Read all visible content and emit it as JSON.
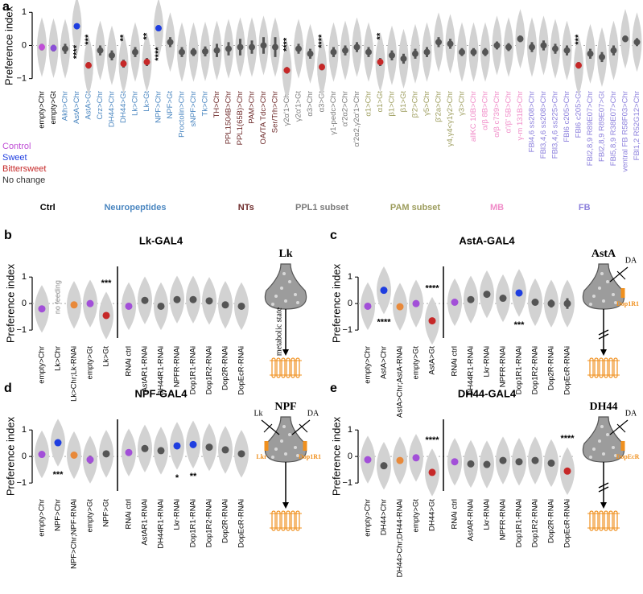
{
  "chart_data": [
    {
      "type": "violin",
      "panel": "a",
      "ylabel": "Preference index",
      "ylim": [
        -1.3,
        1.25
      ],
      "yticks": [
        {
          "value": -1,
          "label": "−1"
        },
        0,
        1
      ],
      "legend": [
        {
          "name": "Control",
          "color": "#c04fd6"
        },
        {
          "name": "Sweet",
          "color": "#1f3ee0"
        },
        {
          "name": "Bittersweet",
          "color": "#c62828"
        },
        {
          "name": "No change",
          "color": "#333333"
        }
      ],
      "groups": [
        {
          "name": "Ctrl",
          "color": "#000000",
          "categories": [
            "empty>Chr",
            "empty>Gt"
          ],
          "values": [
            -0.05,
            -0.08
          ],
          "errors": [
            0.1,
            0.1
          ],
          "colors": [
            "#c04fd6",
            "#8a4fd6"
          ],
          "sig": [
            null,
            null
          ]
        },
        {
          "name": "Neuropeptides",
          "color": "#4a86c0",
          "categories": [
            "Akh>Chr",
            "AstA>Chr",
            "AstA>Gt",
            "Crz>Chr",
            "DH44>Chr",
            "DH44>Gt",
            "Lk>Chr",
            "Lk>Gt",
            "NPF>Chr",
            "NPF>Gt",
            "Proctolin>Chr",
            "sNPF>Chr",
            "Tk>Chr"
          ],
          "values": [
            -0.1,
            0.58,
            -0.6,
            -0.15,
            -0.3,
            -0.55,
            -0.2,
            -0.5,
            0.52,
            0.1,
            -0.2,
            -0.2,
            -0.18
          ],
          "errors": [
            0.15,
            0.08,
            0.1,
            0.15,
            0.15,
            0.12,
            0.15,
            0.12,
            0.08,
            0.15,
            0.15,
            0.12,
            0.15
          ],
          "colors": [
            "#555555",
            "#1f3ee0",
            "#c62828",
            "#555555",
            "#555555",
            "#c62828",
            "#555555",
            "#c62828",
            "#1f3ee0",
            "#555555",
            "#555555",
            "#555555",
            "#555555"
          ],
          "sig": [
            null,
            "****",
            "***",
            null,
            null,
            "**",
            null,
            "**",
            "****",
            null,
            null,
            null,
            null
          ]
        },
        {
          "name": "NTs",
          "color": "#6e2b2b",
          "categories": [
            "TH>Chr",
            "PPL1504B>Chr",
            "PPL1(65B)>Chr",
            "PAM>Chr",
            "OA/TA Tdc>Chr",
            "Ser/Trh>Chr"
          ],
          "values": [
            -0.15,
            -0.1,
            -0.05,
            -0.05,
            0.0,
            -0.05
          ],
          "errors": [
            0.2,
            0.2,
            0.25,
            0.2,
            0.25,
            0.3
          ],
          "colors": [
            "#555555",
            "#555555",
            "#555555",
            "#555555",
            "#555555",
            "#555555"
          ],
          "sig": [
            null,
            null,
            null,
            null,
            null,
            null
          ]
        },
        {
          "name": "PPL1 subset",
          "color": "#7a7a7a",
          "categories": [
            "γ2α'1>Chr",
            "γ2α'1>Gt",
            "α3>Chr",
            "α3>Gt",
            "γ1-pedc>Chr",
            "α'2α2>Chr",
            "α'2α2,γ2α'1>Chr"
          ],
          "values": [
            -0.75,
            -0.1,
            -0.25,
            -0.65,
            -0.2,
            -0.15,
            -0.05
          ],
          "errors": [
            0.1,
            0.15,
            0.15,
            0.1,
            0.15,
            0.15,
            0.15
          ],
          "colors": [
            "#c62828",
            "#555555",
            "#555555",
            "#c62828",
            "#555555",
            "#555555",
            "#555555"
          ],
          "sig": [
            "****",
            null,
            null,
            "****",
            null,
            null,
            null
          ]
        },
        {
          "name": "PAM subset",
          "color": "#9c9c5c",
          "categories": [
            "α1>Chr",
            "α1>Gt",
            "β1>Chr",
            "β1>Gt",
            "β'2>Chr",
            "γ5>Chr",
            "β'2a>Chr",
            "γ4,γ4<γ1γ2>Chr",
            "γ3>Chr"
          ],
          "values": [
            -0.2,
            -0.5,
            -0.3,
            -0.4,
            -0.25,
            -0.2,
            0.1,
            0.05,
            -0.2
          ],
          "errors": [
            0.15,
            0.12,
            0.15,
            0.15,
            0.15,
            0.15,
            0.15,
            0.15,
            0.12
          ],
          "colors": [
            "#555555",
            "#c62828",
            "#555555",
            "#555555",
            "#555555",
            "#555555",
            "#555555",
            "#555555",
            "#555555"
          ],
          "sig": [
            null,
            "**",
            null,
            null,
            null,
            null,
            null,
            null,
            null
          ]
        },
        {
          "name": "MB",
          "color": "#f08cc8",
          "categories": [
            "allKC 10B>Chr",
            "α/β 8B>Chr",
            "α/β c739>Chr",
            "α'/β' 5B>Chr",
            "γ-m 131B>Chr"
          ],
          "values": [
            -0.2,
            -0.2,
            0.0,
            -0.05,
            0.2
          ],
          "errors": [
            0.12,
            0.12,
            0.12,
            0.12,
            0.1
          ],
          "colors": [
            "#555555",
            "#555555",
            "#555555",
            "#555555",
            "#555555"
          ],
          "sig": [
            null,
            null,
            null,
            null,
            null
          ]
        },
        {
          "name": "FB",
          "color": "#8c80dc",
          "categories": [
            "FBl4,6 ss208>Chr",
            "FBl3,4,6 ss208>Chr",
            "FBl3,4,6 ss225>Chr",
            "FBl6 c205>Chr",
            "FBl6 c205>Gt",
            "FBl2,8,9 R89E07>Chr",
            "FBl2,8,9 R89E07>Gt",
            "FBl5,8,9 R38E07>Chr",
            "ventral FB R58F03>Chr",
            "FBl1,2 R52G12>Chr"
          ],
          "values": [
            -0.05,
            0.0,
            -0.1,
            -0.15,
            -0.6,
            -0.25,
            -0.35,
            -0.15,
            0.2,
            0.1
          ],
          "errors": [
            0.15,
            0.15,
            0.15,
            0.15,
            0.1,
            0.15,
            0.15,
            0.15,
            0.1,
            0.12
          ],
          "colors": [
            "#555555",
            "#555555",
            "#555555",
            "#555555",
            "#c62828",
            "#555555",
            "#555555",
            "#555555",
            "#555555",
            "#555555"
          ],
          "sig": [
            null,
            null,
            null,
            null,
            "***",
            null,
            null,
            null,
            null,
            null
          ]
        }
      ]
    },
    {
      "type": "violin",
      "panel": "b",
      "title": "Lk-GAL4",
      "ylabel": "Preference index",
      "ylim": [
        -1.3,
        1.4
      ],
      "yticks": [
        {
          "value": -1,
          "label": "−1"
        },
        0,
        1
      ],
      "groups": [
        {
          "categories": [
            "empty>Chr",
            "Lk>Chr",
            "Lk>Chr;Lk-RNAi",
            "empty>Gt",
            "Lk>Gt"
          ],
          "values": [
            -0.2,
            null,
            -0.05,
            0.0,
            -0.45
          ],
          "errors": [
            0.1,
            null,
            0.1,
            0.1,
            0.08
          ],
          "colors": [
            "#a24fd8",
            null,
            "#e8893a",
            "#a24fd8",
            "#c62828"
          ],
          "sig": [
            null,
            null,
            null,
            null,
            "***"
          ],
          "note": "no feeding"
        },
        {
          "categories": [
            "RNAi ctrl",
            "AstAR1-RNAi",
            "DH44R1-RNAi",
            "NPFR-RNAi",
            "Dop1R1-RNAi",
            "Dop1R2-RNAi",
            "Dop2R-RNAi",
            "DopEcR-RNAi"
          ],
          "values": [
            -0.1,
            0.12,
            -0.1,
            0.15,
            0.15,
            0.1,
            -0.05,
            -0.1
          ],
          "errors": [
            0.08,
            0.1,
            0.08,
            0.1,
            0.1,
            0.1,
            0.12,
            0.12
          ],
          "colors": [
            "#a24fd8",
            "#555555",
            "#555555",
            "#555555",
            "#555555",
            "#555555",
            "#555555",
            "#555555"
          ],
          "sig": [
            null,
            null,
            null,
            null,
            null,
            null,
            null,
            null
          ]
        }
      ],
      "diagram": {
        "name": "Lk",
        "note": "metabolic state",
        "receptor_color": "#f0901e"
      }
    },
    {
      "type": "violin",
      "panel": "c",
      "title": "AstA-GAL4",
      "ylabel": "Preference index",
      "ylim": [
        -1.3,
        1.4
      ],
      "yticks": [
        {
          "value": -1,
          "label": "−1"
        },
        0,
        1
      ],
      "groups": [
        {
          "categories": [
            "empty>Chr",
            "AstA>Chr",
            "AstA>Chr;AstA-RNAi",
            "empty>Gt",
            "AstA>Gt"
          ],
          "values": [
            -0.1,
            0.5,
            -0.12,
            0.0,
            -0.65
          ],
          "errors": [
            0.12,
            0.07,
            0.08,
            0.12,
            0.07
          ],
          "colors": [
            "#a24fd8",
            "#1f3ee0",
            "#e8893a",
            "#a24fd8",
            "#c62828"
          ],
          "sig": [
            null,
            "****",
            null,
            null,
            "****"
          ]
        },
        {
          "categories": [
            "RNAi ctrl",
            "DH44R1-RNAi",
            "Lkr-RNAi",
            "NPFR-RNAi",
            "Dop1R1-RNAi",
            "Dop1R2-RNAi",
            "Dop2R-RNAi",
            "DopEcR-RNAi"
          ],
          "values": [
            0.05,
            0.15,
            0.35,
            0.2,
            0.4,
            0.05,
            0.0,
            0.0
          ],
          "errors": [
            0.1,
            0.1,
            0.1,
            0.1,
            0.08,
            0.1,
            0.15,
            0.2
          ],
          "colors": [
            "#a24fd8",
            "#555555",
            "#555555",
            "#555555",
            "#1f3ee0",
            "#555555",
            "#555555",
            "#555555"
          ],
          "sig": [
            null,
            null,
            null,
            null,
            "***",
            null,
            null,
            null
          ]
        }
      ],
      "diagram": {
        "name": "AstA",
        "inputs": [
          "DA"
        ],
        "receptors": [
          "Dop1R1"
        ],
        "receptor_color": "#f0901e"
      }
    },
    {
      "type": "violin",
      "panel": "d",
      "title": "NPF-GAL4",
      "ylabel": "Preference index",
      "ylim": [
        -1.3,
        1.4
      ],
      "yticks": [
        {
          "value": -1,
          "label": "−1"
        },
        0,
        1
      ],
      "groups": [
        {
          "categories": [
            "empty>Chr",
            "NPF>Chr",
            "NPF>Chr;NPF-RNAi",
            "empty>Gt",
            "NPF>Gt"
          ],
          "values": [
            0.08,
            0.52,
            0.05,
            -0.12,
            0.1
          ],
          "errors": [
            0.1,
            0.07,
            0.1,
            0.15,
            0.1
          ],
          "colors": [
            "#a24fd8",
            "#1f3ee0",
            "#e8893a",
            "#a24fd8",
            "#555555"
          ],
          "sig": [
            null,
            "***",
            null,
            null,
            null
          ]
        },
        {
          "categories": [
            "RNAi ctrl",
            "AstAR1-RNAi",
            "DH44R1-RNAi",
            "Lkr-RNAi",
            "Dop1R1-RNAi",
            "Dop1R2-RNAi",
            "Dop2R-RNAi",
            "DopEcR-RNAi"
          ],
          "values": [
            0.15,
            0.3,
            0.22,
            0.4,
            0.45,
            0.35,
            0.25,
            0.1
          ],
          "errors": [
            0.1,
            0.08,
            0.08,
            0.1,
            0.07,
            0.1,
            0.1,
            0.1
          ],
          "colors": [
            "#a24fd8",
            "#555555",
            "#555555",
            "#1f3ee0",
            "#1f3ee0",
            "#555555",
            "#555555",
            "#555555"
          ],
          "sig": [
            null,
            null,
            null,
            "*",
            "**",
            null,
            null,
            null
          ]
        }
      ],
      "diagram": {
        "name": "NPF",
        "inputs": [
          "Lk",
          "DA"
        ],
        "receptors": [
          "Lkr",
          "Dop1R1"
        ],
        "receptor_color": "#f0901e"
      }
    },
    {
      "type": "violin",
      "panel": "e",
      "title": "DH44-GAL4",
      "ylabel": "Preference index",
      "ylim": [
        -1.3,
        1.4
      ],
      "yticks": [
        {
          "value": -1,
          "label": "−1"
        },
        0,
        1
      ],
      "groups": [
        {
          "categories": [
            "empty>Chr",
            "DH44>Chr",
            "DH44>Chr;DH44-RNAi",
            "empty>Gt",
            "DH44>Gt"
          ],
          "values": [
            -0.12,
            -0.35,
            -0.15,
            -0.05,
            -0.6
          ],
          "errors": [
            0.1,
            0.1,
            0.1,
            0.12,
            0.08
          ],
          "colors": [
            "#a24fd8",
            "#555555",
            "#e8893a",
            "#a24fd8",
            "#c62828"
          ],
          "sig": [
            null,
            null,
            null,
            null,
            "****"
          ]
        },
        {
          "categories": [
            "RNAi ctrl",
            "AstAR-RNAi",
            "Lkr-RNAi",
            "NPFR-RNAi",
            "Dop1R1-RNAi",
            "Dop1R2-RNAi",
            "Dop2R-RNAi",
            "DopEcR-RNAi"
          ],
          "values": [
            -0.2,
            -0.28,
            -0.3,
            -0.15,
            -0.2,
            -0.15,
            -0.25,
            -0.55
          ],
          "errors": [
            0.1,
            0.08,
            0.1,
            0.1,
            0.1,
            0.1,
            0.08,
            0.08
          ],
          "colors": [
            "#a24fd8",
            "#555555",
            "#555555",
            "#555555",
            "#555555",
            "#555555",
            "#555555",
            "#c62828"
          ],
          "sig": [
            null,
            null,
            null,
            null,
            null,
            null,
            null,
            "****"
          ]
        }
      ],
      "diagram": {
        "name": "DH44",
        "inputs": [
          "DA"
        ],
        "receptors": [
          "DopEcR"
        ],
        "receptor_color": "#f0901e"
      }
    }
  ]
}
